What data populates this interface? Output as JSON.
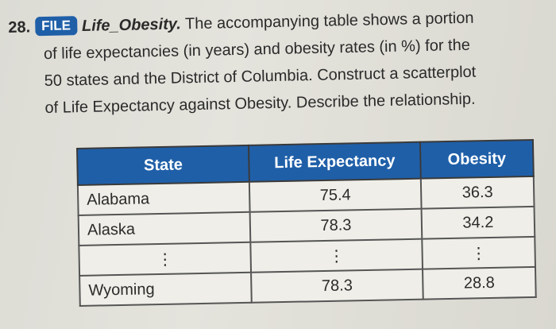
{
  "problem": {
    "number": "28.",
    "badge": "FILE",
    "file_name": "Life_Obesity.",
    "lines": [
      "The accompanying table shows a portion",
      "of life expectancies (in years) and obesity rates (in %) for the",
      "50 states and the District of Columbia. Construct a scatterplot",
      "of Life Expectancy against Obesity. Describe the relationship."
    ]
  },
  "table": {
    "headers": [
      "State",
      "Life Expectancy",
      "Obesity"
    ],
    "rows": [
      [
        "Alabama",
        "75.4",
        "36.3"
      ],
      [
        "Alaska",
        "78.3",
        "34.2"
      ],
      [
        "⋮",
        "⋮",
        "⋮"
      ],
      [
        "Wyoming",
        "78.3",
        "28.8"
      ]
    ]
  }
}
